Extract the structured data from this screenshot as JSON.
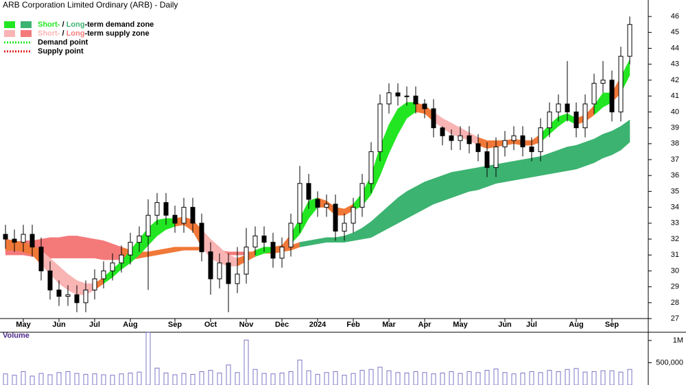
{
  "chart_data": {
    "type": "candlestick",
    "title": "ARB Corporation Limited Ordinary (ARB) - Daily",
    "legend": [
      {
        "parts": [
          "Short-",
          " / ",
          "Long",
          "-term demand zone"
        ],
        "swatches": [
          "#22e622",
          "#3cb371"
        ]
      },
      {
        "parts": [
          "Short-",
          " / ",
          "Long",
          "-term supply zone"
        ],
        "swatches": [
          "#f9b4b4",
          "#f47a7a"
        ]
      },
      {
        "parts": [
          "Demand point"
        ],
        "line_color": "#22e622"
      },
      {
        "parts": [
          "Supply point"
        ],
        "line_color": "#e02020"
      }
    ],
    "categories": [
      null,
      null,
      "May",
      null,
      null,
      null,
      "Jun",
      null,
      null,
      null,
      "Jul",
      null,
      null,
      null,
      "Aug",
      null,
      null,
      null,
      null,
      "Sep",
      null,
      null,
      null,
      "Oct",
      null,
      null,
      null,
      "Nov",
      null,
      null,
      null,
      "Dec",
      null,
      null,
      null,
      "2024",
      null,
      null,
      null,
      "Feb",
      null,
      null,
      null,
      "Mar",
      null,
      null,
      null,
      "Apr",
      null,
      null,
      null,
      "May",
      null,
      null,
      null,
      null,
      "Jun",
      null,
      null,
      "Jul",
      null,
      null,
      null,
      null,
      "Aug",
      null,
      null,
      null,
      "Sep",
      null,
      null
    ],
    "open": [
      32.3,
      32.0,
      31.8,
      32.3,
      31.5,
      30.0,
      28.8,
      28.4,
      28.5,
      28.0,
      28.8,
      29.5,
      30.0,
      30.5,
      31.0,
      31.8,
      32.2,
      33.5,
      34.3,
      33.5,
      33.0,
      34.0,
      33.0,
      31.2,
      29.5,
      30.5,
      29.2,
      29.8,
      31.5,
      32.2,
      31.8,
      30.8,
      31.5,
      33.0,
      35.5,
      34.5,
      34.0,
      34.2,
      32.5,
      33.0,
      34.0,
      35.5,
      37.5,
      40.5,
      41.2,
      41.0,
      41.0,
      40.5,
      40.2,
      39.0,
      38.5,
      38.2,
      38.5,
      38.0,
      37.5,
      36.5,
      37.8,
      38.2,
      38.5,
      37.8,
      37.5,
      39.0,
      40.0,
      40.5,
      40.0,
      39.0,
      40.5,
      41.8,
      42.0,
      40.0,
      43.5
    ],
    "high": [
      32.9,
      32.6,
      32.9,
      32.9,
      32.1,
      30.6,
      29.4,
      29.1,
      29.1,
      29.4,
      30.1,
      30.6,
      31.1,
      31.6,
      32.4,
      32.8,
      34.5,
      34.9,
      34.9,
      34.1,
      34.6,
      34.6,
      33.6,
      31.8,
      31.1,
      31.1,
      31.5,
      32.7,
      32.8,
      32.8,
      32.4,
      32.1,
      33.6,
      36.6,
      36.1,
      35.0,
      34.8,
      34.8,
      33.6,
      34.6,
      36.1,
      38.1,
      41.1,
      41.8,
      41.8,
      41.6,
      41.6,
      40.8,
      40.8,
      39.1,
      38.9,
      39.1,
      39.1,
      38.6,
      38.1,
      38.4,
      38.8,
      39.1,
      39.1,
      38.4,
      39.6,
      40.6,
      41.1,
      43.2,
      40.6,
      41.1,
      42.4,
      43.2,
      42.6,
      44.1,
      46.0
    ],
    "low": [
      31.4,
      31.2,
      31.2,
      30.9,
      29.4,
      28.2,
      27.8,
      27.8,
      27.4,
      27.4,
      28.2,
      28.9,
      29.4,
      29.9,
      30.4,
      31.2,
      28.8,
      32.9,
      32.9,
      32.4,
      32.4,
      32.4,
      30.6,
      28.5,
      28.9,
      27.4,
      28.6,
      29.2,
      31.0,
      31.2,
      30.2,
      30.2,
      30.9,
      32.4,
      33.9,
      33.4,
      33.4,
      31.9,
      31.9,
      32.4,
      33.4,
      34.9,
      36.9,
      39.9,
      40.4,
      40.4,
      39.9,
      39.6,
      38.4,
      37.9,
      37.6,
      37.6,
      37.4,
      36.9,
      35.9,
      35.9,
      37.2,
      37.6,
      37.2,
      36.9,
      36.9,
      38.4,
      39.4,
      39.4,
      38.4,
      38.4,
      39.9,
      41.2,
      39.4,
      39.4,
      43.0
    ],
    "close": [
      32.0,
      31.8,
      32.3,
      31.5,
      30.0,
      28.8,
      28.4,
      28.5,
      28.0,
      28.8,
      29.5,
      30.0,
      30.5,
      31.0,
      31.8,
      32.2,
      33.5,
      34.3,
      33.5,
      33.0,
      34.0,
      33.0,
      31.2,
      29.5,
      30.5,
      29.2,
      29.8,
      31.5,
      32.2,
      31.8,
      30.8,
      31.5,
      33.0,
      35.5,
      34.5,
      34.0,
      34.2,
      32.5,
      33.0,
      34.0,
      35.5,
      37.5,
      40.5,
      41.2,
      41.0,
      41.0,
      40.5,
      40.2,
      39.0,
      38.5,
      38.2,
      38.5,
      38.0,
      37.5,
      36.5,
      37.8,
      38.2,
      38.5,
      37.8,
      37.5,
      39.0,
      40.0,
      40.5,
      40.0,
      39.0,
      40.5,
      41.8,
      42.0,
      40.0,
      43.5,
      45.5
    ],
    "zones": [
      {
        "upper": [
          31.8,
          31.8,
          31.9,
          31.9,
          32.0,
          32.1,
          32.1,
          32.2,
          32.2,
          32.1,
          32.0,
          31.9,
          31.7,
          31.5,
          31.3,
          31.2,
          31.2,
          31.3,
          31.4,
          31.5,
          31.5,
          31.5,
          31.5,
          31.4,
          31.3,
          31.2,
          31.2,
          31.2,
          31.2,
          31.3,
          31.3,
          31.4,
          31.6,
          31.8,
          31.9,
          32.0,
          32.1,
          32.1,
          32.2,
          32.4,
          32.7,
          33.1,
          33.6,
          34.1,
          34.6,
          35.0,
          35.3,
          35.6,
          35.8,
          36.0,
          36.2,
          36.3,
          36.4,
          36.5,
          36.6,
          36.7,
          36.8,
          36.9,
          37.0,
          37.1,
          37.2,
          37.4,
          37.6,
          37.8,
          37.9,
          38.1,
          38.3,
          38.6,
          38.8,
          39.1,
          39.5
        ],
        "lower": [
          31.0,
          31.0,
          31.0,
          30.9,
          30.9,
          30.8,
          30.8,
          30.8,
          30.8,
          30.8,
          30.8,
          30.7,
          30.7,
          30.7,
          30.7,
          30.8,
          30.9,
          31.0,
          31.1,
          31.2,
          31.3,
          31.3,
          31.3,
          31.2,
          31.1,
          31.0,
          31.0,
          31.0,
          31.1,
          31.1,
          31.1,
          31.2,
          31.3,
          31.5,
          31.6,
          31.7,
          31.8,
          31.8,
          31.8,
          31.9,
          32.0,
          32.1,
          32.4,
          32.7,
          33.0,
          33.3,
          33.6,
          33.9,
          34.2,
          34.4,
          34.6,
          34.8,
          35.0,
          35.1,
          35.3,
          35.5,
          35.6,
          35.7,
          35.8,
          35.9,
          36.0,
          36.1,
          36.2,
          36.3,
          36.4,
          36.6,
          36.8,
          37.1,
          37.3,
          37.6,
          38.1
        ],
        "colors": [
          "#f47a7a",
          "#f47a7a",
          "#f47a7a",
          "#f47a7a",
          "#f47a7a",
          "#f47a7a",
          "#f47a7a",
          "#f47a7a",
          "#f47a7a",
          "#f47a7a",
          "#f47a7a",
          "#f47a7a",
          "#f47a7a",
          "#f07838",
          "#f07838",
          "#f07838",
          "#f07838",
          "#f07838",
          "#f07838",
          "#f07838",
          "#f07838",
          "#f07838",
          "#f07838",
          "#f47a7a",
          "#f47a7a",
          "#f47a7a",
          "#f47a7a",
          "#f07838",
          "#f07838",
          "#f07838",
          "#f07838",
          "#f07838",
          "#f07838",
          "#3cb371",
          "#3cb371",
          "#3cb371",
          "#3cb371",
          "#3cb371",
          "#3cb371",
          "#3cb371",
          "#3cb371",
          "#3cb371",
          "#3cb371",
          "#3cb371",
          "#3cb371",
          "#3cb371",
          "#3cb371",
          "#3cb371",
          "#3cb371",
          "#3cb371",
          "#3cb371",
          "#3cb371",
          "#3cb371",
          "#3cb371",
          "#3cb371",
          "#3cb371",
          "#3cb371",
          "#3cb371",
          "#3cb371",
          "#3cb371",
          "#3cb371",
          "#3cb371",
          "#3cb371",
          "#3cb371",
          "#3cb371",
          "#3cb371",
          "#3cb371",
          "#3cb371",
          "#3cb371",
          "#3cb371",
          "#3cb371"
        ]
      },
      {
        "upper": [
          32.0,
          31.9,
          31.8,
          31.6,
          31.3,
          30.8,
          30.3,
          29.8,
          29.4,
          29.2,
          29.2,
          29.6,
          30.1,
          30.6,
          31.3,
          32.0,
          32.7,
          33.2,
          33.3,
          33.3,
          33.4,
          33.2,
          32.6,
          32.0,
          31.5,
          31.0,
          30.8,
          31.0,
          31.3,
          31.5,
          31.5,
          31.6,
          32.3,
          33.3,
          34.4,
          34.6,
          34.4,
          34.0,
          33.9,
          34.2,
          34.9,
          36.0,
          37.8,
          39.2,
          40.2,
          40.6,
          40.6,
          40.4,
          40.0,
          39.6,
          39.3,
          39.0,
          38.7,
          38.4,
          38.2,
          38.2,
          38.2,
          38.3,
          38.2,
          38.2,
          38.6,
          39.2,
          39.7,
          39.9,
          39.6,
          39.8,
          40.4,
          41.2,
          41.2,
          42.2,
          43.3
        ],
        "lower": [
          31.3,
          31.3,
          31.2,
          31.0,
          30.4,
          29.8,
          29.2,
          28.8,
          28.5,
          28.5,
          28.8,
          29.2,
          29.6,
          30.1,
          30.5,
          31.0,
          31.6,
          32.2,
          32.6,
          32.8,
          32.9,
          32.5,
          31.5,
          30.8,
          30.5,
          30.3,
          30.3,
          30.6,
          30.9,
          31.1,
          31.2,
          31.3,
          31.7,
          32.3,
          33.3,
          34.0,
          34.0,
          33.5,
          33.5,
          33.8,
          34.1,
          34.8,
          36.0,
          37.4,
          38.6,
          39.6,
          40.0,
          39.9,
          39.4,
          39.0,
          38.6,
          38.4,
          38.2,
          37.9,
          37.7,
          37.8,
          37.9,
          38.0,
          37.9,
          37.9,
          38.1,
          38.6,
          39.1,
          39.5,
          39.2,
          39.4,
          39.8,
          40.3,
          40.6,
          41.2,
          42.3
        ],
        "colors": [
          "#f07838",
          "#f07838",
          "#f07838",
          "#f07838",
          "#f9b4b4",
          "#f9b4b4",
          "#f9b4b4",
          "#f9b4b4",
          "#f9b4b4",
          "#f9b4b4",
          "#f07838",
          "#22e622",
          "#22e622",
          "#22e622",
          "#22e622",
          "#22e622",
          "#22e622",
          "#22e622",
          "#22e622",
          "#f07838",
          "#f07838",
          "#f07838",
          "#f9b4b4",
          "#f9b4b4",
          "#f9b4b4",
          "#f9b4b4",
          "#f07838",
          "#f07838",
          "#22e622",
          "#22e622",
          "#f07838",
          "#f07838",
          "#22e622",
          "#22e622",
          "#22e622",
          "#f07838",
          "#f07838",
          "#f07838",
          "#f07838",
          "#22e622",
          "#22e622",
          "#22e622",
          "#22e622",
          "#22e622",
          "#22e622",
          "#22e622",
          "#f07838",
          "#f07838",
          "#f9b4b4",
          "#f9b4b4",
          "#f9b4b4",
          "#f9b4b4",
          "#f9b4b4",
          "#f07838",
          "#f07838",
          "#f07838",
          "#f07838",
          "#f07838",
          "#f07838",
          "#f07838",
          "#22e622",
          "#22e622",
          "#22e622",
          "#22e622",
          "#f07838",
          "#f07838",
          "#22e622",
          "#22e622",
          "#f07838",
          "#22e622",
          "#22e622"
        ]
      }
    ],
    "ylim": [
      26.27,
      47.04
    ],
    "yticks": [
      27,
      28,
      29,
      30,
      31,
      32,
      33,
      34,
      35,
      36,
      37,
      38,
      39,
      40,
      41,
      42,
      43,
      44,
      45,
      46
    ],
    "volume": {
      "label": "Volume",
      "color": "#7a74c6",
      "values": [
        250000,
        220000,
        300000,
        200000,
        260000,
        230000,
        280000,
        300000,
        260000,
        240000,
        250000,
        230000,
        220000,
        250000,
        270000,
        290000,
        1180000,
        380000,
        270000,
        230000,
        260000,
        240000,
        300000,
        330000,
        270000,
        450000,
        280000,
        1010000,
        350000,
        260000,
        250000,
        270000,
        300000,
        560000,
        320000,
        240000,
        280000,
        300000,
        220000,
        260000,
        330000,
        350000,
        400000,
        320000,
        280000,
        270000,
        300000,
        280000,
        250000,
        270000,
        300000,
        260000,
        300000,
        280000,
        330000,
        360000,
        280000,
        250000,
        270000,
        300000,
        280000,
        330000,
        300000,
        350000,
        370000,
        290000,
        300000,
        320000,
        320000,
        290000,
        350000
      ],
      "ylim": [
        0,
        1185000
      ],
      "yticks": [
        {
          "value": 1000000,
          "label": "1M"
        },
        {
          "value": 500000,
          "label": "500,000"
        }
      ]
    }
  }
}
